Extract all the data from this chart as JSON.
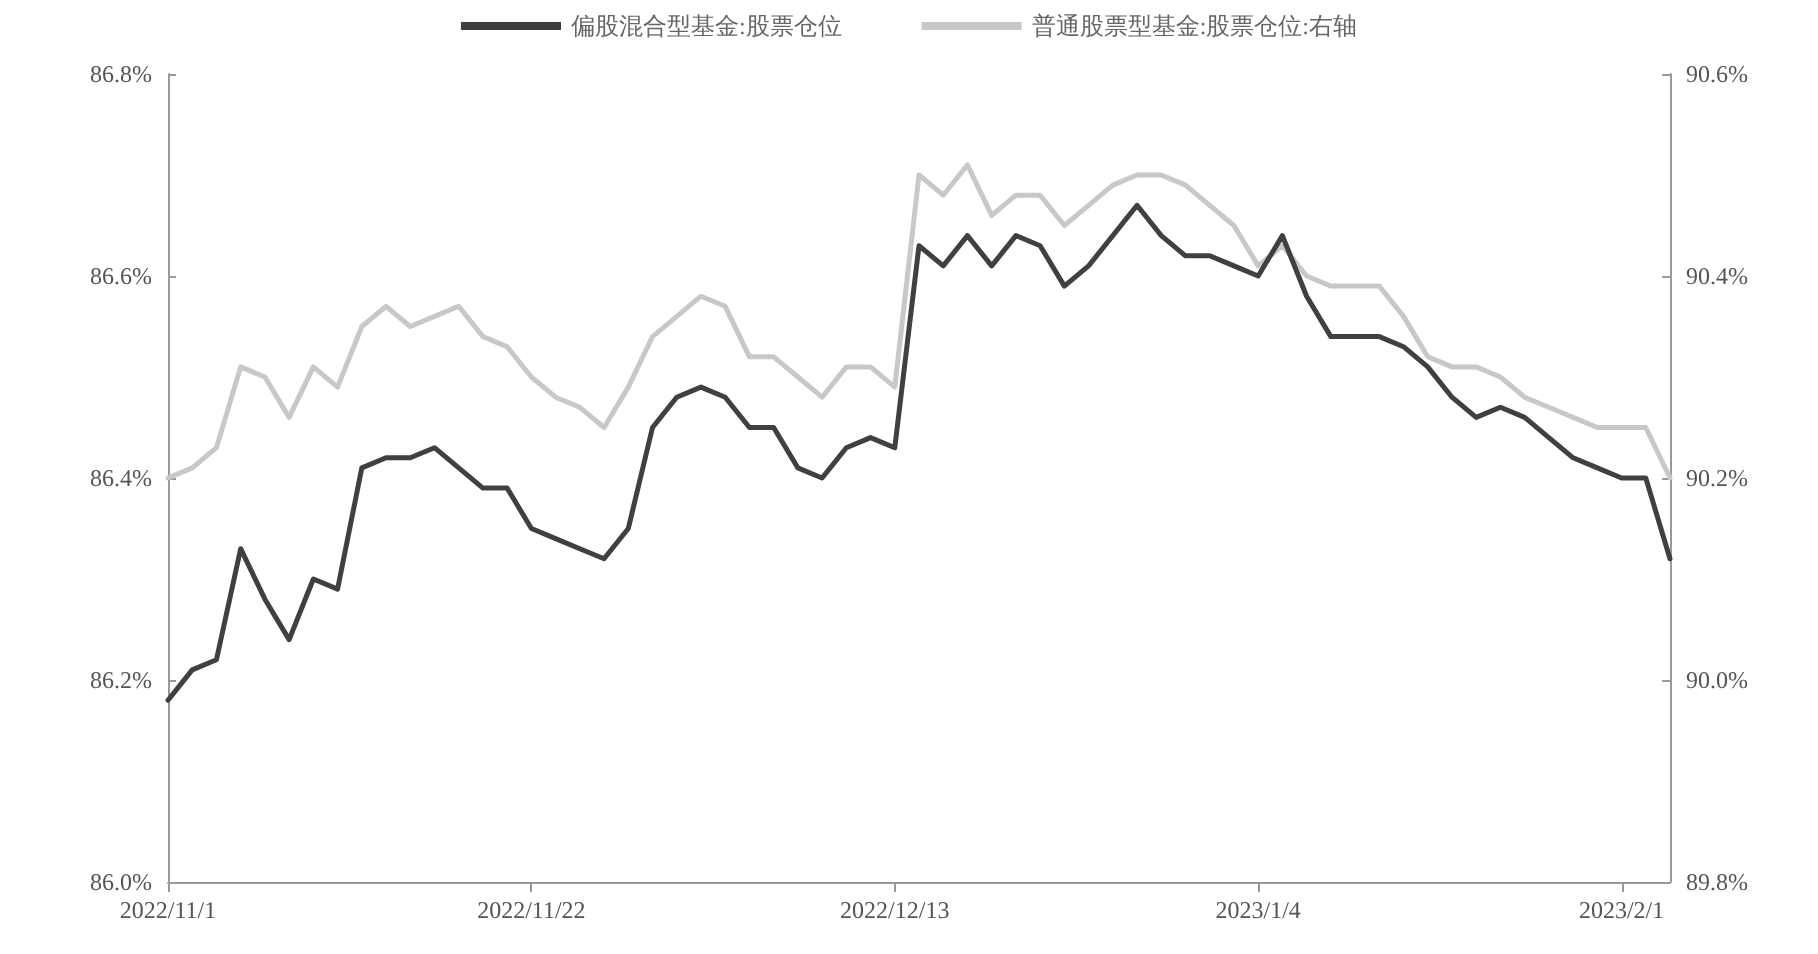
{
  "chart_data": {
    "type": "line",
    "categories": [
      "2022/11/1",
      null,
      null,
      null,
      null,
      null,
      null,
      null,
      null,
      null,
      null,
      null,
      null,
      null,
      null,
      "2022/11/22",
      null,
      null,
      null,
      null,
      null,
      null,
      null,
      null,
      null,
      null,
      null,
      null,
      null,
      null,
      "2022/12/13",
      null,
      null,
      null,
      null,
      null,
      null,
      null,
      null,
      null,
      null,
      null,
      null,
      null,
      null,
      "2023/1/4",
      null,
      null,
      null,
      null,
      null,
      null,
      null,
      null,
      null,
      null,
      null,
      null,
      null,
      null,
      "2023/2/1",
      null,
      null
    ],
    "series": [
      {
        "name": "偏股混合型基金:股票仓位",
        "color": "#404040",
        "values": [
          86.18,
          86.21,
          86.22,
          86.33,
          86.28,
          86.24,
          86.3,
          86.29,
          86.41,
          86.42,
          86.42,
          86.43,
          86.41,
          86.39,
          86.39,
          86.35,
          86.34,
          86.33,
          86.32,
          86.35,
          86.45,
          86.48,
          86.49,
          86.48,
          86.45,
          86.45,
          86.41,
          86.4,
          86.43,
          86.44,
          86.43,
          86.63,
          86.61,
          86.64,
          86.61,
          86.64,
          86.63,
          86.59,
          86.61,
          86.64,
          86.67,
          86.64,
          86.62,
          86.62,
          86.61,
          86.6,
          86.64,
          86.58,
          86.54,
          86.54,
          86.54,
          86.53,
          86.51,
          86.48,
          86.46,
          86.47,
          86.46,
          86.44,
          86.42,
          86.41,
          86.4,
          86.4,
          86.32
        ]
      },
      {
        "name": "普通股票型基金:股票仓位:右轴",
        "color": "#c8c8c8",
        "axis": "y2",
        "values": [
          90.2,
          90.21,
          90.23,
          90.31,
          90.3,
          90.26,
          90.31,
          90.29,
          90.35,
          90.37,
          90.35,
          90.36,
          90.37,
          90.34,
          90.33,
          90.3,
          90.28,
          90.27,
          90.25,
          90.29,
          90.34,
          90.36,
          90.38,
          90.37,
          90.32,
          90.32,
          90.3,
          90.28,
          90.31,
          90.31,
          90.29,
          90.5,
          90.48,
          90.51,
          90.46,
          90.48,
          90.48,
          90.45,
          90.47,
          90.49,
          90.5,
          90.5,
          90.49,
          90.47,
          90.45,
          90.41,
          90.43,
          90.4,
          90.39,
          90.39,
          90.39,
          90.36,
          90.32,
          90.31,
          90.31,
          90.3,
          90.28,
          90.27,
          90.26,
          90.25,
          90.25,
          90.25,
          90.2
        ]
      }
    ],
    "ylim": [
      86.0,
      86.8
    ],
    "yticks": [
      {
        "value": 86.0,
        "label": "86.0%"
      },
      {
        "value": 86.2,
        "label": "86.2%"
      },
      {
        "value": 86.4,
        "label": "86.4%"
      },
      {
        "value": 86.6,
        "label": "86.6%"
      },
      {
        "value": 86.8,
        "label": "86.8%"
      }
    ],
    "y2lim": [
      89.8,
      90.6
    ],
    "y2ticks": [
      {
        "value": 89.8,
        "label": "89.8%"
      },
      {
        "value": 90.0,
        "label": "90.0%"
      },
      {
        "value": 90.2,
        "label": "90.2%"
      },
      {
        "value": 90.4,
        "label": "90.4%"
      },
      {
        "value": 90.6,
        "label": "90.6%"
      }
    ],
    "grid": false,
    "legend": "top",
    "marker": "none",
    "line_style": "solid"
  }
}
